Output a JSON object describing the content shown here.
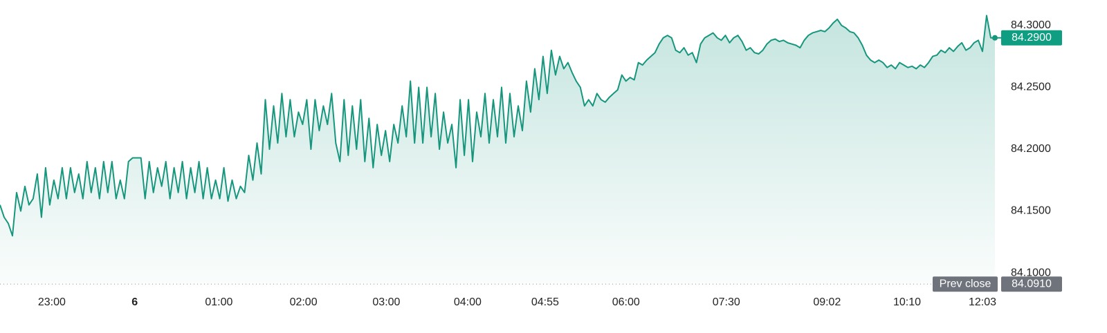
{
  "chart_data": {
    "type": "area",
    "color": "#17967e",
    "values": [
      84.155,
      84.145,
      84.14,
      84.13,
      84.165,
      84.15,
      84.17,
      84.155,
      84.16,
      84.18,
      84.145,
      84.185,
      84.155,
      84.175,
      84.16,
      84.185,
      84.16,
      84.185,
      84.165,
      84.18,
      84.16,
      84.19,
      84.165,
      84.185,
      84.16,
      84.19,
      84.165,
      84.19,
      84.16,
      84.175,
      84.16,
      84.19,
      84.193,
      84.193,
      84.193,
      84.16,
      84.19,
      84.165,
      84.185,
      84.17,
      84.19,
      84.16,
      84.185,
      84.165,
      84.19,
      84.16,
      84.185,
      84.165,
      84.19,
      84.16,
      84.185,
      84.16,
      84.175,
      84.16,
      84.185,
      84.158,
      84.175,
      84.16,
      84.17,
      84.165,
      84.195,
      84.175,
      84.205,
      84.18,
      84.24,
      84.2,
      84.235,
      84.205,
      84.245,
      84.21,
      84.24,
      84.21,
      84.23,
      84.22,
      84.24,
      84.2,
      84.24,
      84.215,
      84.235,
      84.22,
      84.245,
      84.205,
      84.19,
      84.24,
      84.195,
      84.235,
      84.2,
      84.24,
      84.19,
      84.225,
      84.185,
      84.22,
      84.195,
      84.215,
      84.19,
      84.22,
      84.205,
      84.235,
      84.21,
      84.255,
      84.205,
      84.25,
      84.205,
      84.25,
      84.21,
      84.245,
      84.2,
      84.23,
      84.205,
      84.22,
      84.185,
      84.24,
      84.195,
      84.24,
      84.19,
      84.23,
      84.21,
      84.245,
      84.205,
      84.24,
      84.21,
      84.25,
      84.205,
      84.245,
      84.21,
      84.235,
      84.215,
      84.255,
      84.23,
      84.265,
      84.24,
      84.275,
      84.245,
      84.28,
      84.26,
      84.275,
      84.265,
      84.27,
      84.262,
      84.255,
      84.25,
      84.235,
      84.24,
      84.235,
      84.245,
      84.24,
      84.238,
      84.242,
      84.245,
      84.248,
      84.26,
      84.255,
      84.258,
      84.256,
      84.27,
      84.268,
      84.272,
      84.275,
      84.278,
      84.285,
      84.29,
      84.292,
      84.29,
      84.28,
      84.278,
      84.282,
      84.276,
      84.278,
      84.27,
      84.285,
      84.29,
      84.292,
      84.294,
      84.29,
      84.288,
      84.292,
      84.286,
      84.29,
      84.292,
      84.287,
      84.28,
      84.282,
      84.278,
      84.277,
      84.28,
      84.285,
      84.288,
      84.289,
      84.287,
      84.288,
      84.286,
      84.285,
      84.284,
      84.282,
      84.288,
      84.292,
      84.294,
      84.295,
      84.296,
      84.295,
      84.298,
      84.302,
      84.305,
      84.3,
      84.298,
      84.295,
      84.294,
      84.29,
      84.284,
      84.276,
      84.272,
      84.27,
      84.272,
      84.27,
      84.266,
      84.268,
      84.265,
      84.27,
      84.268,
      84.266,
      84.267,
      84.265,
      84.268,
      84.266,
      84.27,
      84.275,
      84.276,
      84.28,
      84.278,
      84.282,
      84.279,
      84.283,
      84.286,
      84.28,
      84.282,
      84.286,
      84.288,
      84.279,
      84.308,
      84.29,
      84.29
    ],
    "last_label": "84.2900",
    "prev_close": {
      "name": "Prev close",
      "value": 84.091,
      "label": "84.0910"
    },
    "xlim": [
      0,
      240
    ],
    "xticks": [
      {
        "value": 12.5,
        "label": "23:00"
      },
      {
        "value": 32.5,
        "label": "6"
      },
      {
        "value": 52.8,
        "label": "01:00"
      },
      {
        "value": 73.2,
        "label": "02:00"
      },
      {
        "value": 93.2,
        "label": "03:00"
      },
      {
        "value": 112.8,
        "label": "04:00"
      },
      {
        "value": 131.5,
        "label": "04:55"
      },
      {
        "value": 151,
        "label": "06:00"
      },
      {
        "value": 175.2,
        "label": "07:30"
      },
      {
        "value": 199.5,
        "label": "09:02"
      },
      {
        "value": 218.8,
        "label": "10:10"
      },
      {
        "value": 237,
        "label": "12:03"
      }
    ],
    "ylim": [
      84.09,
      84.32
    ],
    "yticks": [
      {
        "value": 84.1,
        "label": "84.1000"
      },
      {
        "value": 84.15,
        "label": "84.1500"
      },
      {
        "value": 84.2,
        "label": "84.2000"
      },
      {
        "value": 84.25,
        "label": "84.2500"
      },
      {
        "value": 84.3,
        "label": "84.3000"
      }
    ]
  }
}
